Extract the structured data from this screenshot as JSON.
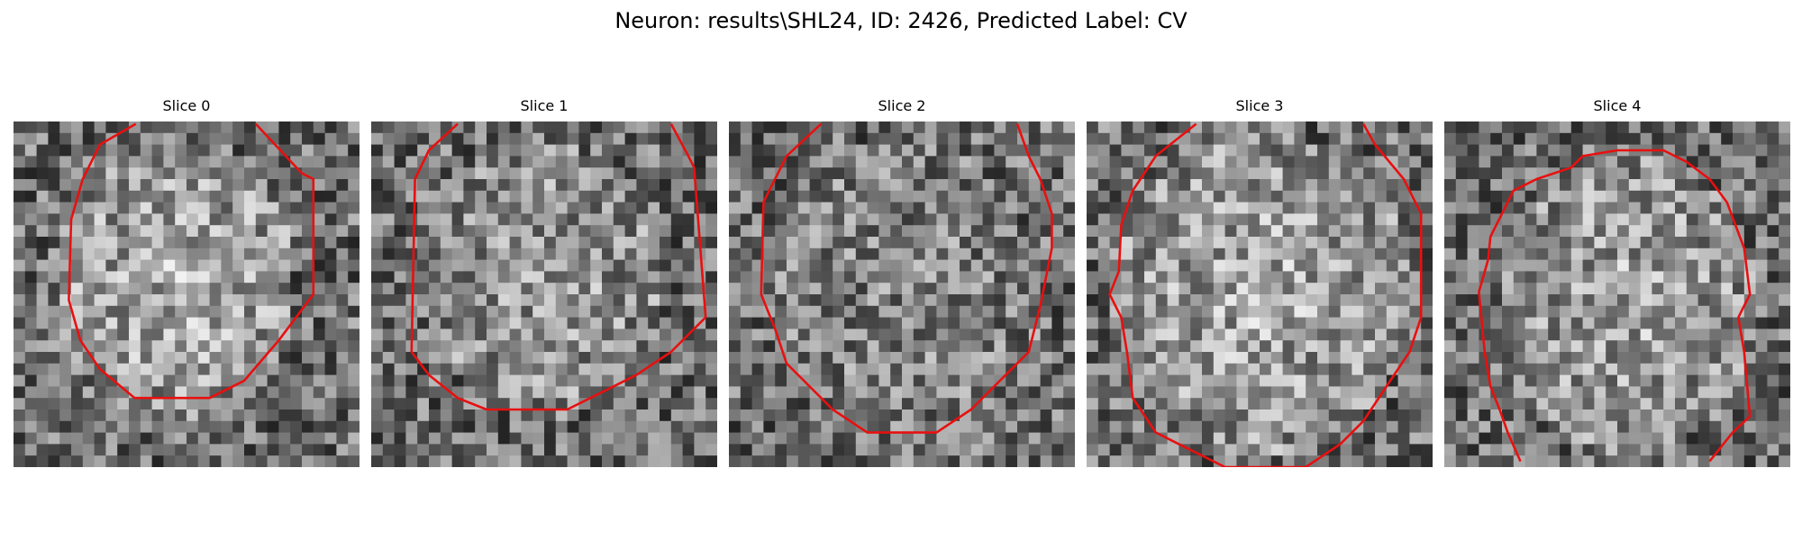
{
  "figure": {
    "title": "Neuron: results\\SHL24, ID: 2426, Predicted Label: CV",
    "contour_color": "#e81010",
    "colormap": "grayscale",
    "panels": [
      {
        "label": "Slice 0"
      },
      {
        "label": "Slice 1"
      },
      {
        "label": "Slice 2"
      },
      {
        "label": "Slice 3"
      },
      {
        "label": "Slice 4"
      }
    ]
  }
}
